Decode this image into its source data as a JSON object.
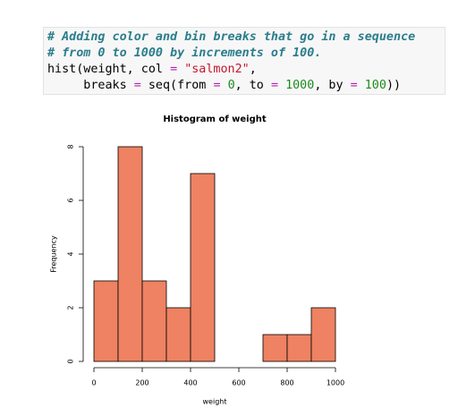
{
  "code": [
    [
      {
        "text": "# Adding color and bin breaks that go in a sequence",
        "color": "#2b7d8c",
        "italic": true
      }
    ],
    [
      {
        "text": "# from 0 to 1000 by increments of 100.",
        "color": "#2b7d8c",
        "italic": true
      }
    ],
    [
      {
        "text": "hist(weight, col ",
        "color": "#000000"
      },
      {
        "text": "=",
        "color": "#b21fb2"
      },
      {
        "text": " ",
        "color": "#000000"
      },
      {
        "text": "\"salmon2\"",
        "color": "#c4172c"
      },
      {
        "text": ",",
        "color": "#000000"
      }
    ],
    [
      {
        "text": "     breaks ",
        "color": "#000000"
      },
      {
        "text": "=",
        "color": "#b21fb2"
      },
      {
        "text": " seq(from ",
        "color": "#000000"
      },
      {
        "text": "=",
        "color": "#b21fb2"
      },
      {
        "text": " ",
        "color": "#000000"
      },
      {
        "text": "0",
        "color": "#208a20"
      },
      {
        "text": ", to ",
        "color": "#000000"
      },
      {
        "text": "=",
        "color": "#b21fb2"
      },
      {
        "text": " ",
        "color": "#000000"
      },
      {
        "text": "1000",
        "color": "#208a20"
      },
      {
        "text": ", by ",
        "color": "#000000"
      },
      {
        "text": "=",
        "color": "#b21fb2"
      },
      {
        "text": " ",
        "color": "#000000"
      },
      {
        "text": "100",
        "color": "#208a20"
      },
      {
        "text": "))",
        "color": "#000000"
      }
    ]
  ],
  "chart_data": {
    "type": "histogram",
    "title": "Histogram of weight",
    "x_label": "weight",
    "y_label": "Frequency",
    "bins": [
      0,
      100,
      200,
      300,
      400,
      500,
      600,
      700,
      800,
      900,
      1000
    ],
    "counts": [
      3,
      8,
      3,
      2,
      7,
      0,
      0,
      1,
      1,
      2
    ],
    "color": "#ee8262",
    "xlim": [
      0,
      1000
    ],
    "xticks": [
      0,
      200,
      400,
      600,
      800,
      1000
    ],
    "ylim": [
      0,
      8
    ],
    "yticks": [
      0,
      2,
      4,
      6,
      8
    ]
  }
}
